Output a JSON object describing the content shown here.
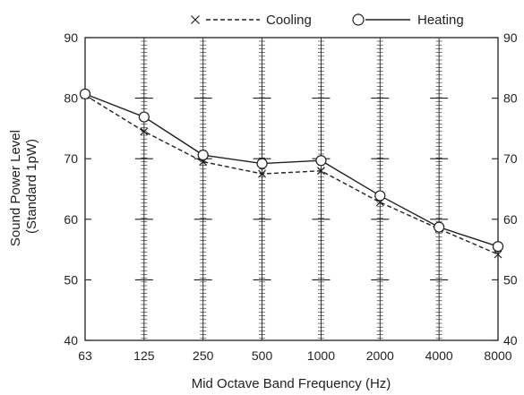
{
  "chart_data": {
    "type": "line",
    "title": "",
    "xlabel": "Mid Octave Band Frequency (Hz)",
    "ylabel_lines": [
      "Sound Power Level",
      "(Standard 1pW)"
    ],
    "categories": [
      "63",
      "125",
      "250",
      "500",
      "1000",
      "2000",
      "4000",
      "8000"
    ],
    "ylim": [
      40,
      90
    ],
    "yticks": [
      "40",
      "50",
      "60",
      "70",
      "80",
      "90"
    ],
    "right_axis_ticks": true,
    "grid": "vertical ladder lines at each category",
    "legend_position": "top",
    "series": [
      {
        "name": "Cooling",
        "marker": "x",
        "line_style": "dashed",
        "values": [
          80.5,
          74.5,
          69.5,
          67.5,
          68.0,
          62.8,
          58.4,
          54.2
        ]
      },
      {
        "name": "Heating",
        "marker": "circle",
        "line_style": "solid",
        "values": [
          80.7,
          76.9,
          70.6,
          69.2,
          69.7,
          63.9,
          58.7,
          55.5
        ]
      }
    ],
    "colors": {
      "line": "#231f20",
      "background": "#ffffff"
    }
  }
}
